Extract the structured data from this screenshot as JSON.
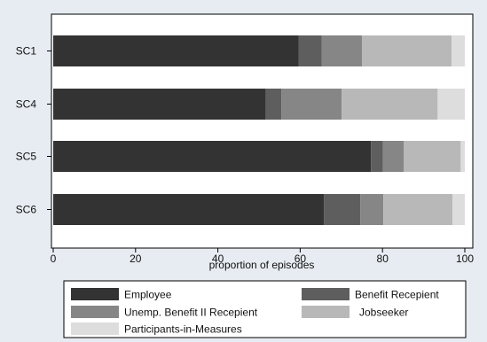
{
  "chart_data": {
    "type": "bar",
    "orientation": "horizontal",
    "stacked": true,
    "title": "",
    "xlabel": "proportion of episodes",
    "ylabel": "",
    "xlim": [
      0,
      100
    ],
    "x_ticks": [
      0,
      20,
      40,
      60,
      80,
      100
    ],
    "grid": false,
    "legend_position": "bottom",
    "categories": [
      "SC1",
      "SC4",
      "SC5",
      "SC6"
    ],
    "series": [
      {
        "name": "Employee",
        "color": "#333333",
        "values": [
          59.6,
          51.6,
          77.2,
          65.8
        ]
      },
      {
        "name": "Benefit Recepient",
        "color": "#5e5e5e",
        "values": [
          5.6,
          3.8,
          2.9,
          8.8
        ]
      },
      {
        "name": "Unemp. Benefit II Recepient",
        "color": "#868686",
        "values": [
          9.8,
          14.7,
          5.1,
          5.6
        ]
      },
      {
        "name": "Jobseeker",
        "color": "#b8b8b8",
        "values": [
          21.8,
          23.3,
          13.8,
          16.8
        ]
      },
      {
        "name": "Participants-in-Measures",
        "color": "#dddddd",
        "values": [
          3.2,
          6.6,
          1.0,
          3.0
        ]
      }
    ]
  }
}
